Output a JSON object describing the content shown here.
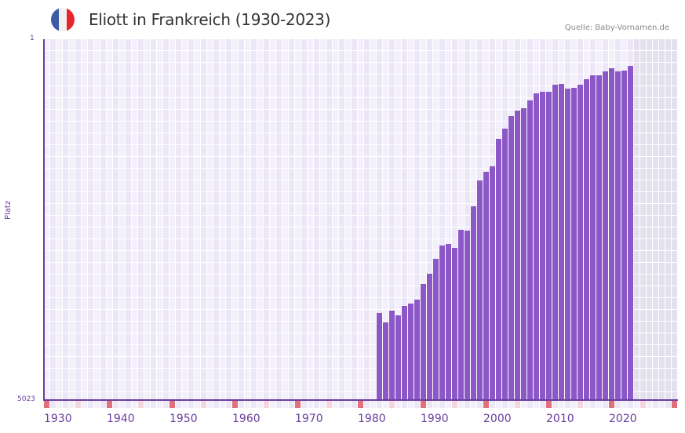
{
  "header": {
    "title": "Eliott in Frankreich (1930-2023)",
    "source": "Quelle: Baby-Vornamen.de",
    "flag": {
      "name": "france-flag-icon",
      "colors": [
        "#3c5aa6",
        "#f1f1f1",
        "#e8252d"
      ]
    }
  },
  "colors": {
    "bar": "#8c57c7",
    "axis": "#6b3fa0",
    "grid_light": "#f3f0fb",
    "grid_dark": "#ece7f7",
    "future_shade": "#e4e0ee",
    "decade_marker": "#e0707a",
    "half_decade_marker": "#f5d6df"
  },
  "chart_data": {
    "type": "bar",
    "title": "Eliott in Frankreich (1930-2023)",
    "xlabel": "",
    "ylabel": "Platz",
    "y_inverted": true,
    "ylim": [
      1,
      5023
    ],
    "xlim": [
      1930,
      2030
    ],
    "x_ticks": [
      "1930",
      "1940",
      "1950",
      "1960",
      "1970",
      "1980",
      "1990",
      "2000",
      "2010",
      "2020"
    ],
    "y_ticks": [
      "1",
      "5023"
    ],
    "grid": true,
    "legend": null,
    "categories": [
      1983,
      1984,
      1985,
      1986,
      1987,
      1988,
      1989,
      1990,
      1991,
      1992,
      1993,
      1994,
      1995,
      1996,
      1997,
      1998,
      1999,
      2000,
      2001,
      2002,
      2003,
      2004,
      2005,
      2006,
      2007,
      2008,
      2009,
      2010,
      2011,
      2012,
      2013,
      2014,
      2015,
      2016,
      2017,
      2018,
      2019,
      2020,
      2021,
      2022,
      2023
    ],
    "values": [
      3811,
      3942,
      3778,
      3844,
      3713,
      3680,
      3625,
      3407,
      3265,
      3058,
      2872,
      2850,
      2905,
      2654,
      2665,
      2327,
      1967,
      1847,
      1771,
      1389,
      1247,
      1072,
      996,
      963,
      854,
      756,
      734,
      734,
      636,
      625,
      690,
      679,
      636,
      559,
      505,
      505,
      450,
      406,
      450,
      439,
      374
    ]
  },
  "axes": {
    "y_top_label": "1",
    "y_bottom_label": "5023",
    "y_title": "Platz",
    "x_labels": [
      "1930",
      "1940",
      "1950",
      "1960",
      "1970",
      "1980",
      "1990",
      "2000",
      "2010",
      "2020"
    ]
  }
}
